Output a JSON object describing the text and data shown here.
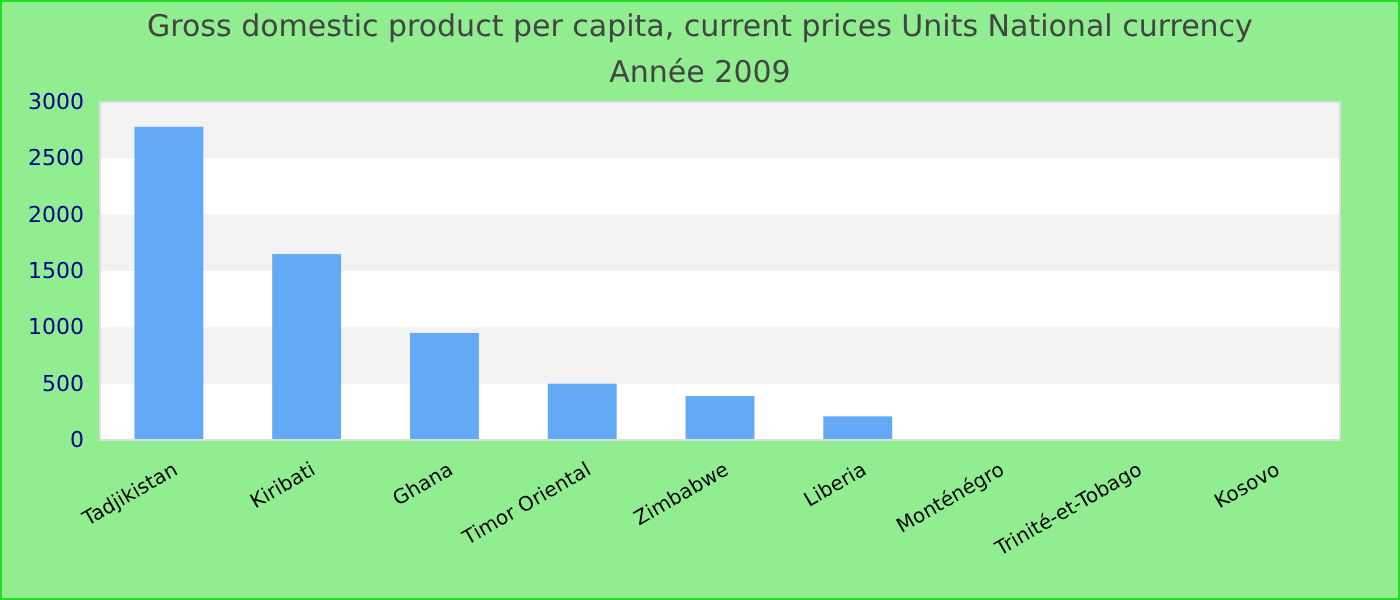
{
  "chart_data": {
    "type": "bar",
    "title": "Gross domestic product per capita, current prices Units National currency",
    "subtitle": "Année 2009",
    "categories": [
      "Tadjikistan",
      "Kiribati",
      "Ghana",
      "Timor Oriental",
      "Zimbabwe",
      "Liberia",
      "Monténégro",
      "Trinité-et-Tobago",
      "Kosovo"
    ],
    "values": [
      2780,
      1650,
      950,
      500,
      390,
      210,
      null,
      null,
      null
    ],
    "color": "#63a9f5",
    "ylim": [
      0,
      3000
    ],
    "yticks": [
      0,
      500,
      1000,
      1500,
      2000,
      2500,
      3000
    ],
    "bands": [
      {
        "axis": "y",
        "from": 500,
        "to": 1000,
        "color": "#f2f2f2"
      },
      {
        "axis": "y",
        "from": 1500,
        "to": 2000,
        "color": "#f2f2f2"
      },
      {
        "axis": "y",
        "from": 2500,
        "to": 3000,
        "color": "#f2f2f2"
      }
    ]
  }
}
